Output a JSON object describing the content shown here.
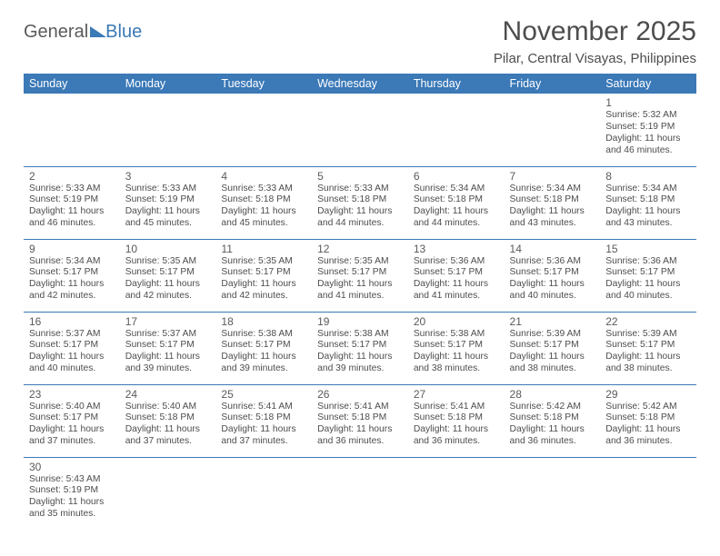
{
  "logo": {
    "word1": "General",
    "word2": "Blue"
  },
  "title": "November 2025",
  "location": "Pilar, Central Visayas, Philippines",
  "dayHeaders": [
    "Sunday",
    "Monday",
    "Tuesday",
    "Wednesday",
    "Thursday",
    "Friday",
    "Saturday"
  ],
  "colors": {
    "headerBg": "#3b79b7",
    "headerText": "#ffffff",
    "bodyText": "#4d4d4d",
    "border": "#3b79b7"
  },
  "layout": {
    "startDayIndex": 6,
    "cols": 7,
    "rows": 6
  },
  "days": [
    {
      "n": 1,
      "sunrise": "5:32 AM",
      "sunset": "5:19 PM",
      "daylight": "11 hours and 46 minutes."
    },
    {
      "n": 2,
      "sunrise": "5:33 AM",
      "sunset": "5:19 PM",
      "daylight": "11 hours and 46 minutes."
    },
    {
      "n": 3,
      "sunrise": "5:33 AM",
      "sunset": "5:19 PM",
      "daylight": "11 hours and 45 minutes."
    },
    {
      "n": 4,
      "sunrise": "5:33 AM",
      "sunset": "5:18 PM",
      "daylight": "11 hours and 45 minutes."
    },
    {
      "n": 5,
      "sunrise": "5:33 AM",
      "sunset": "5:18 PM",
      "daylight": "11 hours and 44 minutes."
    },
    {
      "n": 6,
      "sunrise": "5:34 AM",
      "sunset": "5:18 PM",
      "daylight": "11 hours and 44 minutes."
    },
    {
      "n": 7,
      "sunrise": "5:34 AM",
      "sunset": "5:18 PM",
      "daylight": "11 hours and 43 minutes."
    },
    {
      "n": 8,
      "sunrise": "5:34 AM",
      "sunset": "5:18 PM",
      "daylight": "11 hours and 43 minutes."
    },
    {
      "n": 9,
      "sunrise": "5:34 AM",
      "sunset": "5:17 PM",
      "daylight": "11 hours and 42 minutes."
    },
    {
      "n": 10,
      "sunrise": "5:35 AM",
      "sunset": "5:17 PM",
      "daylight": "11 hours and 42 minutes."
    },
    {
      "n": 11,
      "sunrise": "5:35 AM",
      "sunset": "5:17 PM",
      "daylight": "11 hours and 42 minutes."
    },
    {
      "n": 12,
      "sunrise": "5:35 AM",
      "sunset": "5:17 PM",
      "daylight": "11 hours and 41 minutes."
    },
    {
      "n": 13,
      "sunrise": "5:36 AM",
      "sunset": "5:17 PM",
      "daylight": "11 hours and 41 minutes."
    },
    {
      "n": 14,
      "sunrise": "5:36 AM",
      "sunset": "5:17 PM",
      "daylight": "11 hours and 40 minutes."
    },
    {
      "n": 15,
      "sunrise": "5:36 AM",
      "sunset": "5:17 PM",
      "daylight": "11 hours and 40 minutes."
    },
    {
      "n": 16,
      "sunrise": "5:37 AM",
      "sunset": "5:17 PM",
      "daylight": "11 hours and 40 minutes."
    },
    {
      "n": 17,
      "sunrise": "5:37 AM",
      "sunset": "5:17 PM",
      "daylight": "11 hours and 39 minutes."
    },
    {
      "n": 18,
      "sunrise": "5:38 AM",
      "sunset": "5:17 PM",
      "daylight": "11 hours and 39 minutes."
    },
    {
      "n": 19,
      "sunrise": "5:38 AM",
      "sunset": "5:17 PM",
      "daylight": "11 hours and 39 minutes."
    },
    {
      "n": 20,
      "sunrise": "5:38 AM",
      "sunset": "5:17 PM",
      "daylight": "11 hours and 38 minutes."
    },
    {
      "n": 21,
      "sunrise": "5:39 AM",
      "sunset": "5:17 PM",
      "daylight": "11 hours and 38 minutes."
    },
    {
      "n": 22,
      "sunrise": "5:39 AM",
      "sunset": "5:17 PM",
      "daylight": "11 hours and 38 minutes."
    },
    {
      "n": 23,
      "sunrise": "5:40 AM",
      "sunset": "5:17 PM",
      "daylight": "11 hours and 37 minutes."
    },
    {
      "n": 24,
      "sunrise": "5:40 AM",
      "sunset": "5:18 PM",
      "daylight": "11 hours and 37 minutes."
    },
    {
      "n": 25,
      "sunrise": "5:41 AM",
      "sunset": "5:18 PM",
      "daylight": "11 hours and 37 minutes."
    },
    {
      "n": 26,
      "sunrise": "5:41 AM",
      "sunset": "5:18 PM",
      "daylight": "11 hours and 36 minutes."
    },
    {
      "n": 27,
      "sunrise": "5:41 AM",
      "sunset": "5:18 PM",
      "daylight": "11 hours and 36 minutes."
    },
    {
      "n": 28,
      "sunrise": "5:42 AM",
      "sunset": "5:18 PM",
      "daylight": "11 hours and 36 minutes."
    },
    {
      "n": 29,
      "sunrise": "5:42 AM",
      "sunset": "5:18 PM",
      "daylight": "11 hours and 36 minutes."
    },
    {
      "n": 30,
      "sunrise": "5:43 AM",
      "sunset": "5:19 PM",
      "daylight": "11 hours and 35 minutes."
    }
  ],
  "labels": {
    "sunrise": "Sunrise:",
    "sunset": "Sunset:",
    "daylight": "Daylight:"
  }
}
